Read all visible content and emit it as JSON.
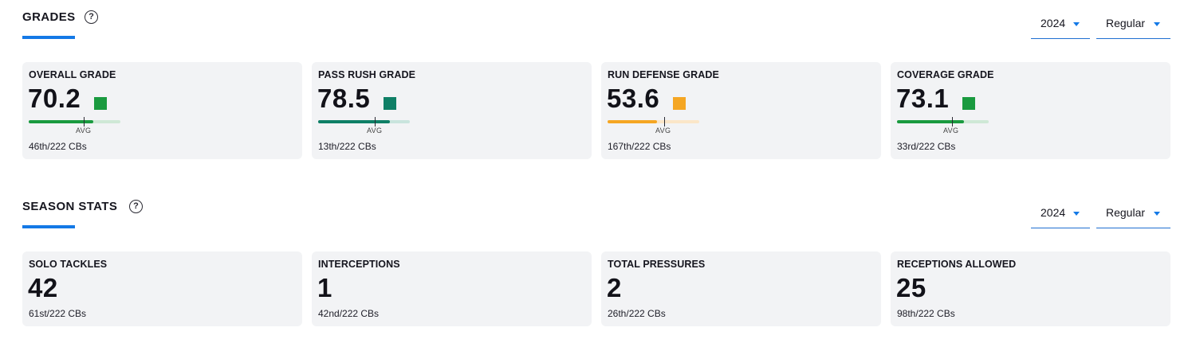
{
  "grades": {
    "title": "GRADES",
    "help_icon": "?",
    "year": "2024",
    "season_type": "Regular",
    "avg_label": "AVG",
    "cards": [
      {
        "label": "OVERALL GRADE",
        "value": "70.2",
        "rank": "46th/222 CBs",
        "color": "#1a9a3f",
        "track_color": "#cfe8d6",
        "percentile": 0.7
      },
      {
        "label": "PASS RUSH GRADE",
        "value": "78.5",
        "rank": "13th/222 CBs",
        "color": "#0f7f66",
        "track_color": "#c9e4dd",
        "percentile": 0.785
      },
      {
        "label": "RUN DEFENSE GRADE",
        "value": "53.6",
        "rank": "167th/222 CBs",
        "color": "#f5a623",
        "track_color": "#fbe6c8",
        "percentile": 0.536
      },
      {
        "label": "COVERAGE GRADE",
        "value": "73.1",
        "rank": "33rd/222 CBs",
        "color": "#1a9a3f",
        "track_color": "#cfe8d6",
        "percentile": 0.731
      }
    ]
  },
  "season_stats": {
    "title": "SEASON STATS",
    "help_icon": "?",
    "year": "2024",
    "season_type": "Regular",
    "cards": [
      {
        "label": "SOLO TACKLES",
        "value": "42",
        "rank": "61st/222 CBs"
      },
      {
        "label": "INTERCEPTIONS",
        "value": "1",
        "rank": "42nd/222 CBs"
      },
      {
        "label": "TOTAL PRESSURES",
        "value": "2",
        "rank": "26th/222 CBs"
      },
      {
        "label": "RECEPTIONS ALLOWED",
        "value": "25",
        "rank": "98th/222 CBs"
      }
    ]
  },
  "icons": {
    "help": "help-circle-icon",
    "dropdown": "caret-down-icon"
  }
}
